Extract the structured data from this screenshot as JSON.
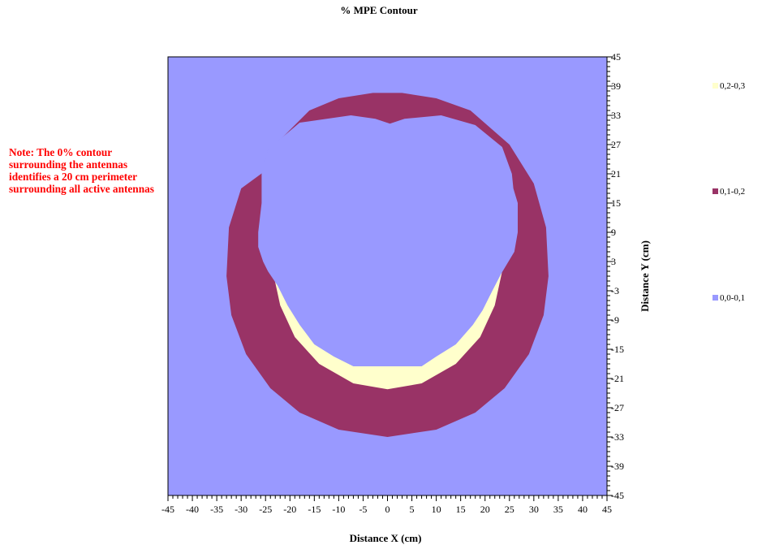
{
  "chart_data": {
    "type": "heatmap",
    "title": "% MPE Contour",
    "xlabel": "Distance X (cm)",
    "ylabel": "Distance Y (cm)",
    "xlim": [
      -45,
      45
    ],
    "ylim": [
      -45,
      45
    ],
    "x_ticks": [
      "-45",
      "-40",
      "-35",
      "-30",
      "-25",
      "-20",
      "-15",
      "-10",
      "-5",
      "0",
      "5",
      "10",
      "15",
      "20",
      "25",
      "30",
      "35",
      "40",
      "45"
    ],
    "y_ticks": [
      "45",
      "39",
      "33",
      "27",
      "21",
      "15",
      "9",
      "3",
      "-3",
      "-9",
      "-15",
      "-21",
      "-27",
      "-33",
      "-39",
      "-45"
    ],
    "legend": [
      {
        "label": "0,2-0,3",
        "color": "#ffffcc"
      },
      {
        "label": "0,1-0,2",
        "color": "#993366"
      },
      {
        "label": "0,0-0,1",
        "color": "#9999ff"
      }
    ],
    "legend_position": "right",
    "regions": [
      {
        "range": "0,1-0,2",
        "color": "#993366",
        "boundary": [
          [
            -25.5,
            21.3
          ],
          [
            -24.0,
            26.0
          ],
          [
            -16.0,
            34.0
          ],
          [
            -10.0,
            36.5
          ],
          [
            -3.0,
            37.6
          ],
          [
            3.0,
            37.6
          ],
          [
            10.0,
            36.5
          ],
          [
            17.0,
            34.0
          ],
          [
            25.0,
            27.0
          ],
          [
            30.0,
            19.0
          ],
          [
            32.5,
            10.0
          ],
          [
            33.0,
            0.0
          ],
          [
            32.0,
            -8.0
          ],
          [
            29.0,
            -16.0
          ],
          [
            24.0,
            -23.0
          ],
          [
            18.0,
            -28.0
          ],
          [
            10.0,
            -31.5
          ],
          [
            0.0,
            -33.0
          ],
          [
            -10.0,
            -31.5
          ],
          [
            -18.0,
            -28.0
          ],
          [
            -24.0,
            -23.0
          ],
          [
            -29.0,
            -16.0
          ],
          [
            -32.0,
            -8.0
          ],
          [
            -33.0,
            0.0
          ],
          [
            -32.5,
            10.0
          ],
          [
            -30.0,
            18.0
          ]
        ]
      },
      {
        "range": "0,2-0,3",
        "color": "#ffffcc",
        "boundary": [
          [
            -23.5,
            1.0
          ],
          [
            -22.0,
            -6.0
          ],
          [
            -19.0,
            -12.5
          ],
          [
            -14.0,
            -18.0
          ],
          [
            -7.0,
            -22.0
          ],
          [
            0.0,
            -23.2
          ],
          [
            7.0,
            -22.0
          ],
          [
            14.0,
            -18.0
          ],
          [
            19.0,
            -12.5
          ],
          [
            22.0,
            -6.0
          ],
          [
            23.5,
            1.0
          ]
        ]
      },
      {
        "range": "0,0-0,1",
        "color": "#9999ff",
        "boundary": [
          [
            -25.8,
            21.0
          ],
          [
            -24.5,
            26.0
          ],
          [
            -18.0,
            31.5
          ],
          [
            -7.5,
            33.0
          ],
          [
            -2.5,
            32.3
          ],
          [
            0.5,
            31.3
          ],
          [
            3.5,
            32.3
          ],
          [
            11.0,
            33.0
          ],
          [
            18.0,
            31.0
          ],
          [
            23.5,
            26.5
          ],
          [
            25.5,
            21.0
          ],
          [
            25.8,
            18.0
          ],
          [
            26.7,
            15.0
          ],
          [
            26.7,
            9.0
          ],
          [
            26.0,
            5.0
          ],
          [
            24.5,
            2.5
          ],
          [
            23.3,
            0.5
          ],
          [
            21.5,
            -3.0
          ],
          [
            19.5,
            -7.0
          ],
          [
            17.5,
            -10.0
          ],
          [
            14.0,
            -14.0
          ],
          [
            10.0,
            -16.5
          ],
          [
            7.0,
            -18.5
          ],
          [
            -7.0,
            -18.5
          ],
          [
            -11.0,
            -16.5
          ],
          [
            -15.0,
            -14.0
          ],
          [
            -18.0,
            -10.0
          ],
          [
            -20.5,
            -6.0
          ],
          [
            -22.5,
            -2.0
          ],
          [
            -24.5,
            1.0
          ],
          [
            -25.5,
            3.0
          ],
          [
            -26.5,
            6.0
          ],
          [
            -26.5,
            9.0
          ],
          [
            -25.8,
            15.0
          ]
        ]
      }
    ],
    "annotation": "Note: The 0% contour surrounding the antennas identifies a 20 cm perimeter surrounding all active antennas"
  }
}
